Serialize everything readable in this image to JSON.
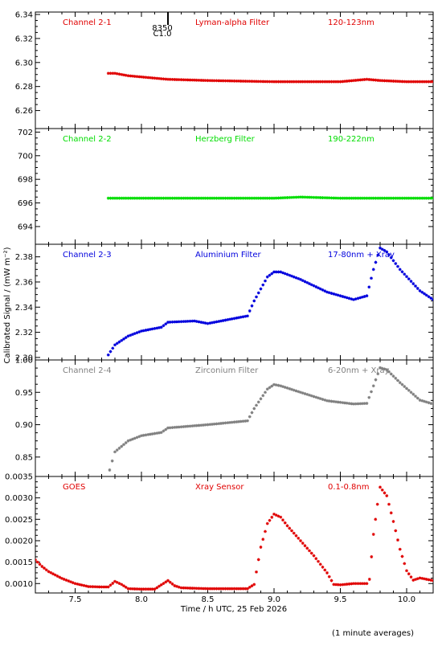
{
  "figure": {
    "ylabel": "Calibrated Signal / (mW m⁻²)",
    "xlabel": "Time / h UTC, 25 Feb 2026",
    "footer": "(1 minute averages)",
    "marker": {
      "top": "8350",
      "bottom": "C1.0",
      "x": 8.2
    }
  },
  "chart_data": [
    {
      "type": "scatter",
      "channel": "Channel 2-1",
      "filter": "Lyman-alpha Filter",
      "band": "120-123nm",
      "color": "#e00000",
      "xlim": [
        7.2,
        10.2
      ],
      "ylim": [
        6.245,
        6.342
      ],
      "yticks": [
        6.26,
        6.28,
        6.3,
        6.32,
        6.34
      ],
      "ytick_labels": [
        "6.26",
        "6.28",
        "6.30",
        "6.32",
        "6.34"
      ],
      "x": [
        7.75,
        7.8,
        7.9,
        8.0,
        8.2,
        8.5,
        9.0,
        9.5,
        9.7,
        9.8,
        10.0,
        10.2
      ],
      "y": [
        6.291,
        6.291,
        6.289,
        6.288,
        6.286,
        6.285,
        6.284,
        6.284,
        6.286,
        6.285,
        6.284,
        6.284
      ]
    },
    {
      "type": "scatter",
      "channel": "Channel 2-2",
      "filter": "Herzberg Filter",
      "band": "190-222nm",
      "color": "#00dd00",
      "xlim": [
        7.2,
        10.2
      ],
      "ylim": [
        692.5,
        702.3
      ],
      "yticks": [
        694,
        696,
        698,
        700,
        702
      ],
      "ytick_labels": [
        "694",
        "696",
        "698",
        "700",
        "702"
      ],
      "x": [
        7.75,
        8.0,
        8.5,
        9.0,
        9.2,
        9.5,
        10.0,
        10.2
      ],
      "y": [
        696.4,
        696.4,
        696.4,
        696.4,
        696.5,
        696.4,
        696.4,
        696.4
      ]
    },
    {
      "type": "scatter",
      "channel": "Channel 2-3",
      "filter": "Aluminium Filter",
      "band": "17-80nm + Xray",
      "color": "#0000dd",
      "xlim": [
        7.2,
        10.2
      ],
      "ylim": [
        2.298,
        2.39
      ],
      "yticks": [
        2.3,
        2.32,
        2.34,
        2.36,
        2.38
      ],
      "ytick_labels": [
        "2.30",
        "2.32",
        "2.34",
        "2.36",
        "2.38"
      ],
      "x": [
        7.75,
        7.8,
        7.9,
        8.0,
        8.15,
        8.2,
        8.4,
        8.5,
        8.8,
        8.85,
        8.95,
        9.0,
        9.05,
        9.2,
        9.4,
        9.6,
        9.7,
        9.75,
        9.8,
        9.85,
        9.95,
        10.1,
        10.2
      ],
      "y": [
        2.302,
        2.31,
        2.317,
        2.321,
        2.324,
        2.328,
        2.329,
        2.327,
        2.333,
        2.345,
        2.364,
        2.368,
        2.368,
        2.362,
        2.352,
        2.346,
        2.349,
        2.37,
        2.387,
        2.384,
        2.37,
        2.353,
        2.346
      ]
    },
    {
      "type": "scatter",
      "channel": "Channel 2-4",
      "filter": "Zirconium Filter",
      "band": "6-20nm + Xray",
      "color": "#808080",
      "xlim": [
        7.2,
        10.2
      ],
      "ylim": [
        0.82,
        1.0
      ],
      "yticks": [
        0.85,
        0.9,
        0.95,
        1.0
      ],
      "ytick_labels": [
        "0.85",
        "0.90",
        "0.95",
        "1.00"
      ],
      "x": [
        7.76,
        7.8,
        7.9,
        8.0,
        8.15,
        8.2,
        8.5,
        8.8,
        8.85,
        8.95,
        9.0,
        9.05,
        9.2,
        9.4,
        9.6,
        9.7,
        9.75,
        9.8,
        9.85,
        9.95,
        10.1,
        10.2
      ],
      "y": [
        0.83,
        0.858,
        0.875,
        0.883,
        0.888,
        0.895,
        0.9,
        0.906,
        0.925,
        0.955,
        0.962,
        0.96,
        0.95,
        0.937,
        0.932,
        0.933,
        0.96,
        0.988,
        0.985,
        0.965,
        0.938,
        0.932
      ]
    },
    {
      "type": "scatter",
      "channel": "GOES",
      "filter": "Xray Sensor",
      "band": "0.1-0.8nm",
      "color": "#e00000",
      "xlim": [
        7.2,
        10.2
      ],
      "ylim": [
        0.00078,
        0.0035
      ],
      "yticks": [
        0.001,
        0.0015,
        0.002,
        0.0025,
        0.003,
        0.0035
      ],
      "ytick_labels": [
        "0.0010",
        "0.0015",
        "0.0020",
        "0.0025",
        "0.0030",
        "0.0035"
      ],
      "x": [
        7.2,
        7.25,
        7.3,
        7.4,
        7.5,
        7.6,
        7.7,
        7.75,
        7.8,
        7.85,
        7.9,
        8.0,
        8.1,
        8.15,
        8.2,
        8.25,
        8.3,
        8.4,
        8.5,
        8.6,
        8.7,
        8.8,
        8.85,
        8.9,
        8.95,
        9.0,
        9.05,
        9.1,
        9.2,
        9.3,
        9.4,
        9.45,
        9.5,
        9.6,
        9.7,
        9.72,
        9.75,
        9.78,
        9.8,
        9.85,
        9.9,
        9.95,
        10.0,
        10.05,
        10.1,
        10.2
      ],
      "y": [
        0.00155,
        0.0014,
        0.00128,
        0.00112,
        0.001,
        0.00093,
        0.00092,
        0.00092,
        0.00105,
        0.00098,
        0.00088,
        0.00087,
        0.00087,
        0.00097,
        0.00107,
        0.00095,
        0.0009,
        0.00089,
        0.00088,
        0.00088,
        0.00088,
        0.00088,
        0.00098,
        0.00185,
        0.0024,
        0.00262,
        0.00255,
        0.00235,
        0.002,
        0.00165,
        0.00125,
        0.00098,
        0.00097,
        0.001,
        0.001,
        0.0011,
        0.00215,
        0.00285,
        0.00325,
        0.00305,
        0.00245,
        0.0018,
        0.0013,
        0.00108,
        0.00113,
        0.00107
      ]
    }
  ]
}
